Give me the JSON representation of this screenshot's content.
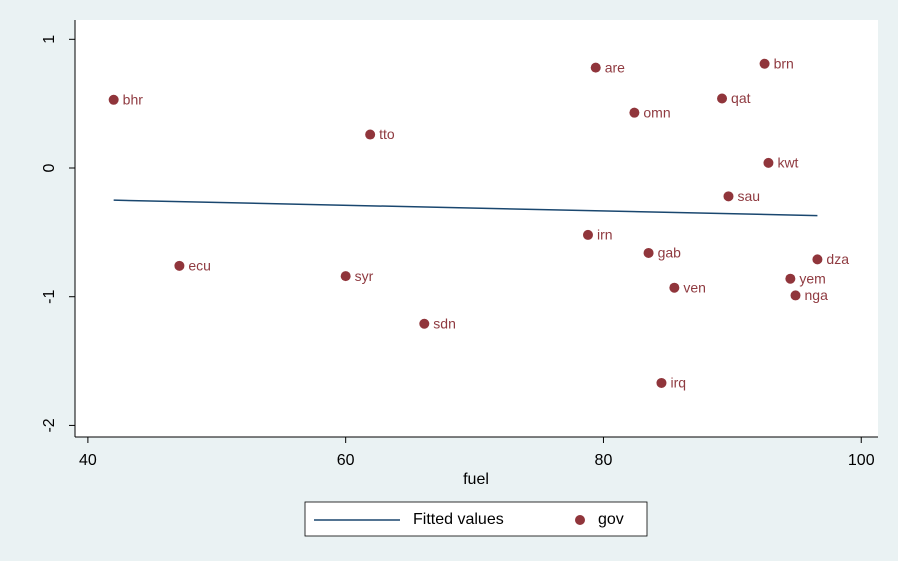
{
  "chart_data": {
    "type": "scatter",
    "xlabel": "fuel",
    "xlim": [
      39,
      101.3
    ],
    "ylim": [
      -2.09,
      1.15
    ],
    "xticks": [
      40,
      60,
      80,
      100
    ],
    "yticks": [
      -2,
      -1,
      0,
      1
    ],
    "legend": "bottom",
    "series": [
      {
        "name": "Fitted values",
        "mode": "line",
        "color": "#1a476f",
        "x": [
          42.0,
          96.6
        ],
        "values": [
          -0.25,
          -0.37
        ]
      },
      {
        "name": "gov",
        "mode": "markers",
        "color": "#90353b",
        "x": [
          42.0,
          47.1,
          61.9,
          60.0,
          66.1,
          79.4,
          82.4,
          78.8,
          83.5,
          85.5,
          84.5,
          89.2,
          92.5,
          92.8,
          89.7,
          96.6,
          94.5,
          94.9
        ],
        "values": [
          0.53,
          -0.76,
          0.26,
          -0.84,
          -1.21,
          0.78,
          0.43,
          -0.52,
          -0.66,
          -0.93,
          -1.67,
          0.54,
          0.81,
          0.04,
          -0.22,
          -0.71,
          -0.86,
          -0.99
        ],
        "point_labels": [
          "bhr",
          "ecu",
          "tto",
          "syr",
          "sdn",
          "are",
          "omn",
          "irn",
          "gab",
          "ven",
          "irq",
          "qat",
          "brn",
          "kwt",
          "sau",
          "dza",
          "yem",
          "nga"
        ]
      }
    ]
  }
}
